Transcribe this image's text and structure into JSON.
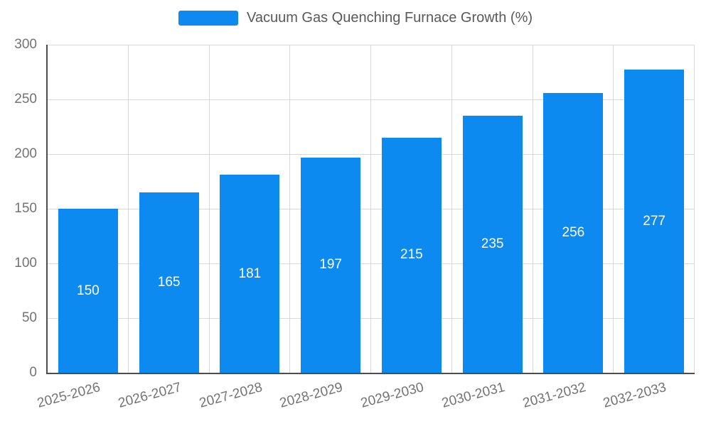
{
  "title": "Vacuum Gas Quenching Furnace Growth (%)",
  "legend": {
    "label": "Vacuum Gas Quenching Furnace Growth (%)",
    "position": "top"
  },
  "colors": {
    "bar": "#0d8af0",
    "axis": "#4d4d4d",
    "grid": "#d9d9d9",
    "tick_text": "#737373",
    "title_text": "#595959",
    "value_label": "#ffffff"
  },
  "chart_data": {
    "type": "bar",
    "title": "Vacuum Gas Quenching Furnace Growth (%)",
    "categories": [
      "2025-2026",
      "2026-2027",
      "2027-2028",
      "2028-2029",
      "2029-2030",
      "2030-2031",
      "2031-2032",
      "2032-2033"
    ],
    "values": [
      150,
      165,
      181,
      197,
      215,
      235,
      256,
      277
    ],
    "xlabel": "",
    "ylabel": "",
    "ylim": [
      0,
      300
    ],
    "yticks": [
      0,
      50,
      100,
      150,
      200,
      250,
      300
    ],
    "ytick_step": 50,
    "x_tick_rotation_deg": -15,
    "grid": true,
    "legend_position": "top",
    "value_label_position": "inside-center"
  }
}
